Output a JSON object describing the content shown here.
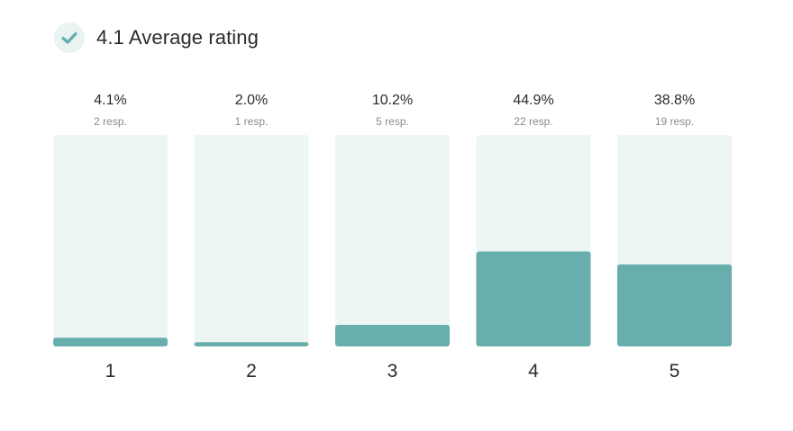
{
  "header": {
    "title": "4.1 Average rating",
    "icon": "check-icon"
  },
  "colors": {
    "track": "#eef6f5",
    "bar": "#67aeac",
    "badge": "#e8f3f2",
    "check": "#67aeac"
  },
  "chart_data": {
    "type": "bar",
    "categories": [
      "1",
      "2",
      "3",
      "4",
      "5"
    ],
    "values": [
      4.1,
      2.0,
      10.2,
      44.9,
      38.8
    ],
    "percent_labels": [
      "4.1%",
      "2.0%",
      "10.2%",
      "44.9%",
      "38.8%"
    ],
    "response_labels": [
      "2 resp.",
      "1 resp.",
      "5 resp.",
      "22 resp.",
      "19 resp."
    ],
    "responses": [
      2,
      1,
      5,
      22,
      19
    ],
    "ylim": [
      0,
      100
    ],
    "grid": false,
    "legend": "none"
  }
}
